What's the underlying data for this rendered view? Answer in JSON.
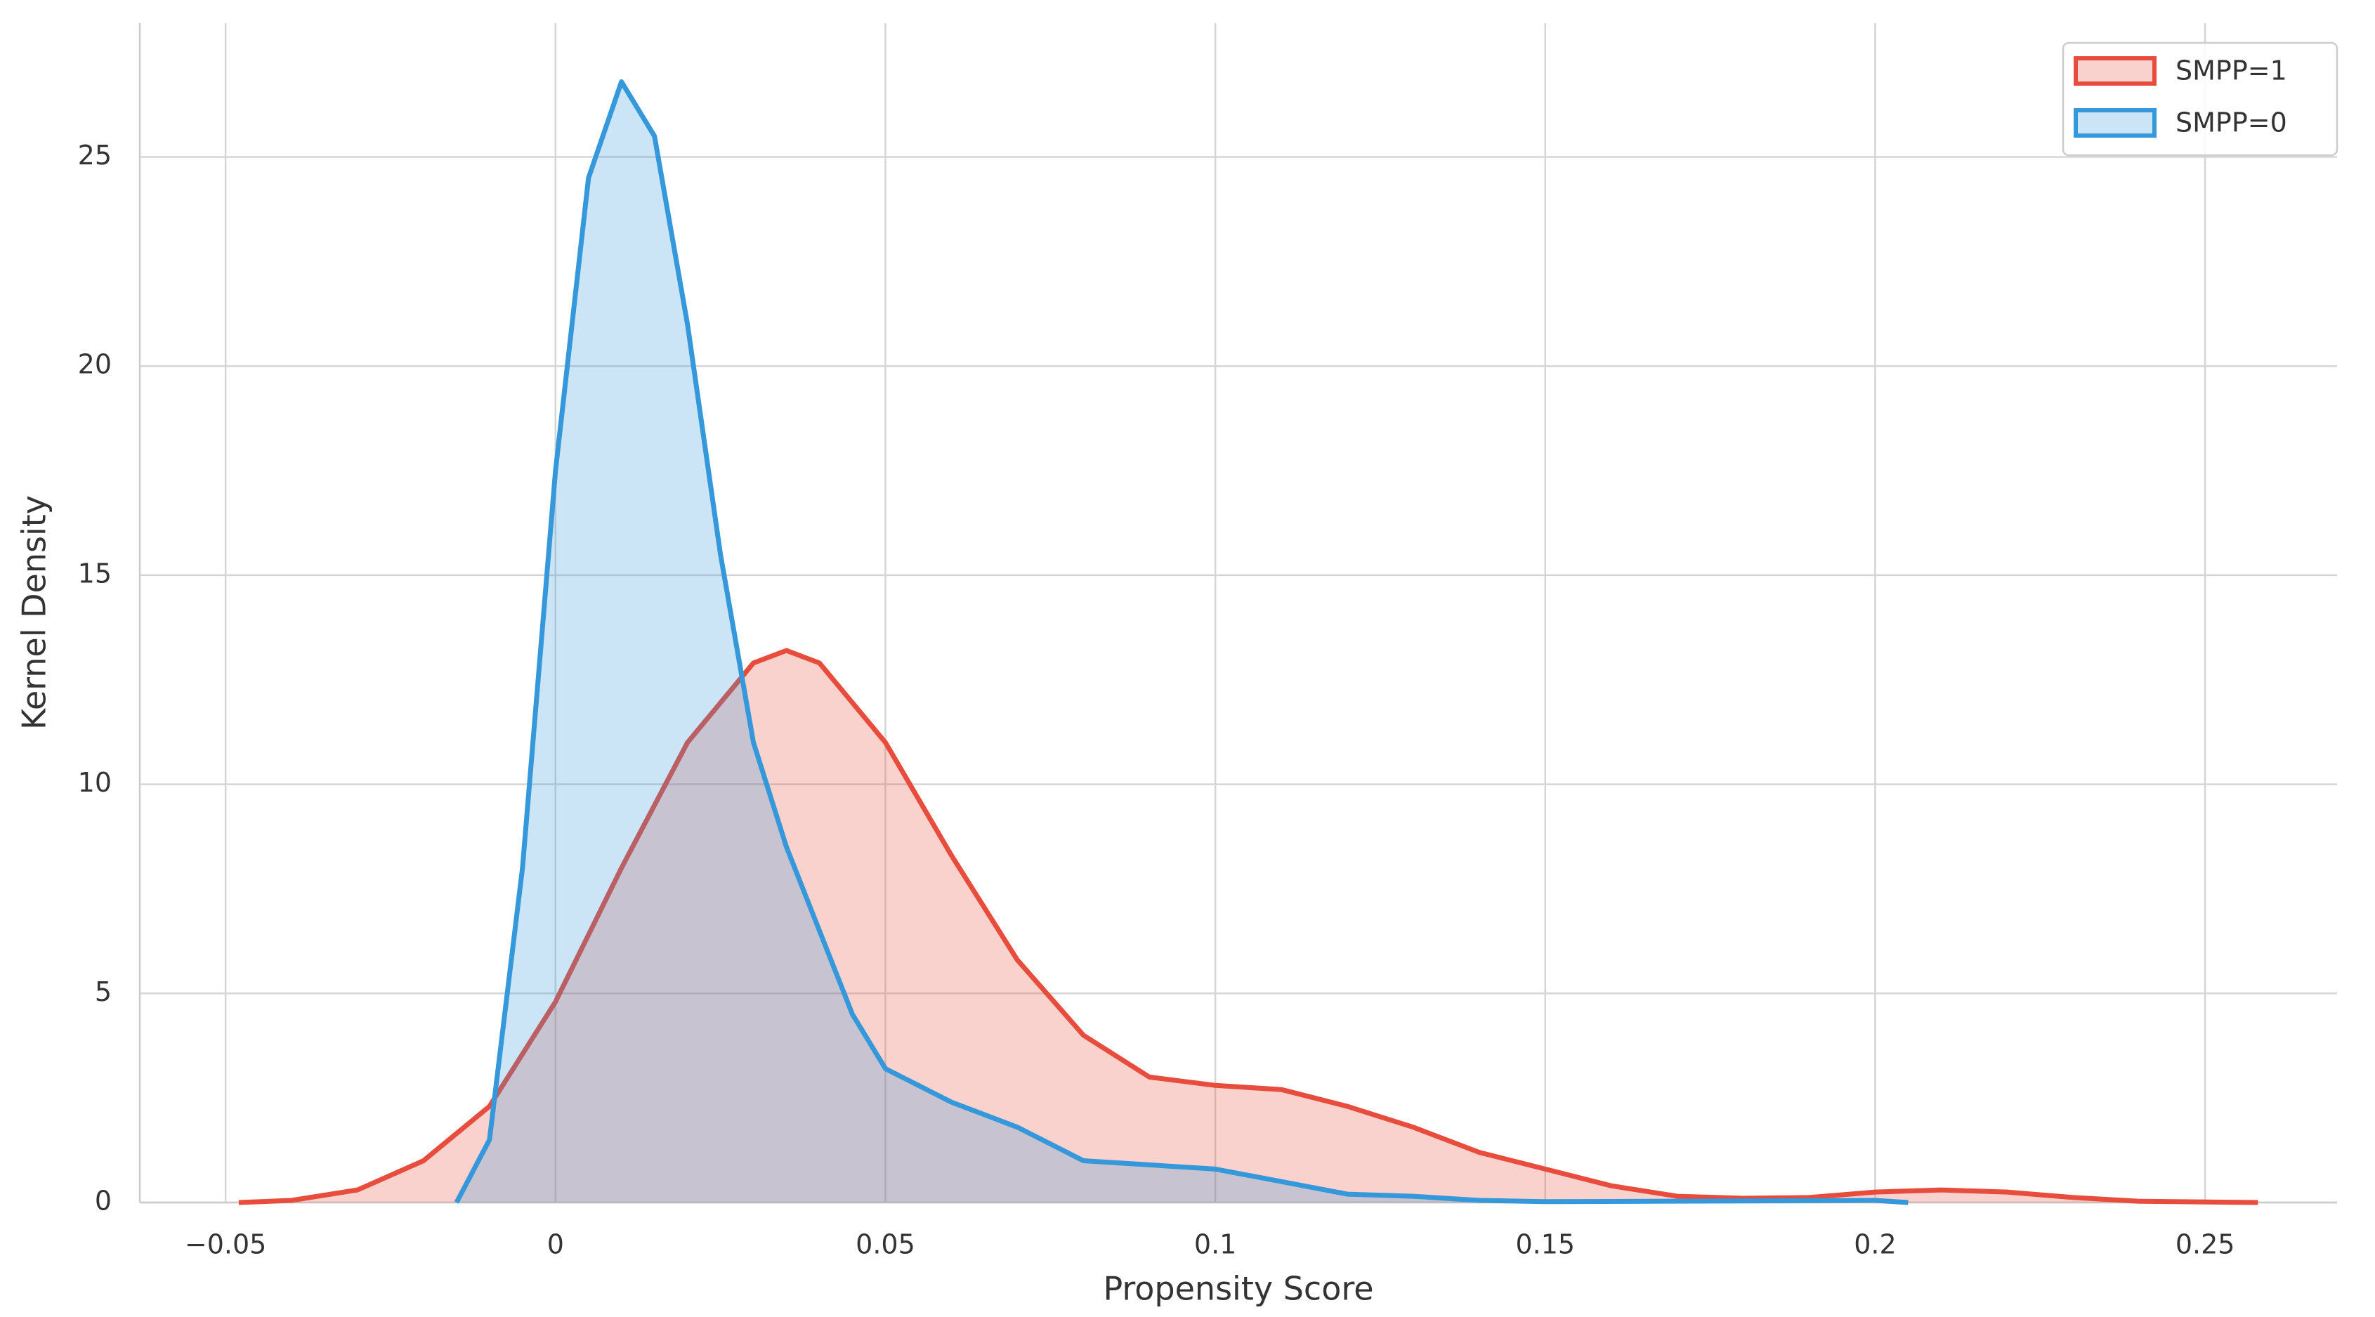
{
  "chart_data": {
    "type": "area",
    "x_label": "Propensity Score",
    "y_label": "Kernel Density",
    "xlim": [
      -0.063,
      0.27
    ],
    "ylim": [
      0,
      28.2
    ],
    "xticks": [
      {
        "value": -0.05,
        "label": "−0.05"
      },
      0,
      0.05,
      0.1,
      0.15,
      0.2,
      0.25
    ],
    "yticks": [
      0,
      5,
      10,
      15,
      20,
      25
    ],
    "grid": true,
    "legend": "upper right",
    "series": [
      {
        "name": "SMPP=1",
        "color": "#e74c3c",
        "x": [
          -0.048,
          -0.04,
          -0.03,
          -0.02,
          -0.01,
          0,
          0.01,
          0.02,
          0.03,
          0.035,
          0.04,
          0.05,
          0.06,
          0.07,
          0.08,
          0.09,
          0.1,
          0.11,
          0.12,
          0.13,
          0.14,
          0.15,
          0.16,
          0.17,
          0.18,
          0.19,
          0.2,
          0.21,
          0.22,
          0.23,
          0.24,
          0.258
        ],
        "values": [
          0,
          0.05,
          0.3,
          1.0,
          2.3,
          4.8,
          8,
          11,
          12.9,
          13.2,
          12.9,
          11.0,
          8.3,
          5.8,
          4.0,
          3.0,
          2.8,
          2.7,
          2.3,
          1.8,
          1.2,
          0.8,
          0.4,
          0.15,
          0.1,
          0.12,
          0.25,
          0.3,
          0.25,
          0.12,
          0.03,
          0
        ]
      },
      {
        "name": "SMPP=0",
        "color": "#3498db",
        "x": [
          -0.015,
          -0.01,
          -0.005,
          0,
          0.005,
          0.01,
          0.015,
          0.02,
          0.025,
          0.03,
          0.035,
          0.04,
          0.045,
          0.05,
          0.055,
          0.06,
          0.07,
          0.08,
          0.09,
          0.1,
          0.11,
          0.12,
          0.13,
          0.14,
          0.15,
          0.2,
          0.205
        ],
        "values": [
          0,
          1.5,
          8,
          17.5,
          24.5,
          26.8,
          25.5,
          21,
          15.5,
          11,
          8.5,
          6.5,
          4.5,
          3.2,
          2.8,
          2.4,
          1.8,
          1.0,
          0.9,
          0.8,
          0.5,
          0.2,
          0.15,
          0.05,
          0.02,
          0.05,
          0
        ]
      }
    ]
  }
}
